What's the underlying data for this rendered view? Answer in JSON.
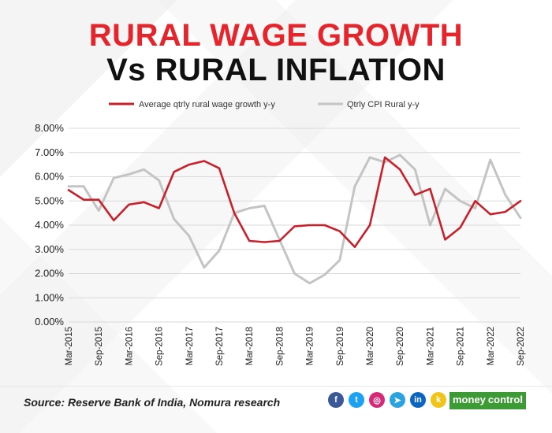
{
  "title_line1": "RURAL WAGE GROWTH",
  "title_line2": "Vs RURAL INFLATION",
  "source": "Source: Reserve Bank of India, Nomura research",
  "brand": {
    "part1": "money",
    "part2": "control"
  },
  "social_icons": [
    {
      "name": "facebook-icon",
      "glyph": "f",
      "color": "#3b5998"
    },
    {
      "name": "twitter-icon",
      "glyph": "t",
      "color": "#1da1f2"
    },
    {
      "name": "instagram-icon",
      "glyph": "◎",
      "color": "#d62976"
    },
    {
      "name": "telegram-icon",
      "glyph": "➤",
      "color": "#2aa3e0"
    },
    {
      "name": "linkedin-icon",
      "glyph": "in",
      "color": "#0a66c2"
    },
    {
      "name": "koo-icon",
      "glyph": "k",
      "color": "#f0c419"
    }
  ],
  "chart_data": {
    "type": "line",
    "xlabel": "",
    "ylabel": "",
    "ylim": [
      0,
      8
    ],
    "yticks": [
      "0.00%",
      "1.00%",
      "2.00%",
      "3.00%",
      "4.00%",
      "5.00%",
      "6.00%",
      "7.00%",
      "8.00%"
    ],
    "grid": true,
    "legend_position": "top",
    "x": [
      "Mar-2015",
      "Jun-2015",
      "Sep-2015",
      "Dec-2015",
      "Mar-2016",
      "Jun-2016",
      "Sep-2016",
      "Dec-2016",
      "Mar-2017",
      "Jun-2017",
      "Sep-2017",
      "Dec-2017",
      "Mar-2018",
      "Jun-2018",
      "Sep-2018",
      "Dec-2018",
      "Mar-2019",
      "Jun-2019",
      "Sep-2019",
      "Dec-2019",
      "Mar-2020",
      "Jun-2020",
      "Sep-2020",
      "Dec-2020",
      "Mar-2021",
      "Jun-2021",
      "Sep-2021",
      "Dec-2021",
      "Mar-2022",
      "Jun-2022",
      "Sep-2022"
    ],
    "x_tick_labels": [
      "Mar-2015",
      "Sep-2015",
      "Mar-2016",
      "Sep-2016",
      "Mar-2017",
      "Sep-2017",
      "Mar-2018",
      "Sep-2018",
      "Mar-2019",
      "Sep-2019",
      "Mar-2020",
      "Sep-2020",
      "Mar-2021",
      "Sep-2021",
      "Mar-2022",
      "Sep-2022"
    ],
    "series": [
      {
        "name": "Average qtrly rural wage growth y-y",
        "color": "#c8202a",
        "values": [
          5.45,
          5.05,
          5.05,
          4.2,
          4.85,
          4.95,
          4.7,
          6.2,
          6.5,
          6.65,
          6.35,
          4.5,
          3.35,
          3.3,
          3.35,
          3.95,
          4.0,
          4.0,
          3.75,
          3.1,
          4.0,
          6.8,
          6.3,
          5.25,
          5.5,
          3.4,
          3.9,
          5.0,
          4.45,
          4.55,
          5.0
        ]
      },
      {
        "name": "Qtrly CPI Rural y-y",
        "color": "#c4c4c4",
        "values": [
          5.6,
          5.6,
          4.6,
          5.95,
          6.1,
          6.3,
          5.85,
          4.25,
          3.55,
          2.25,
          2.95,
          4.5,
          4.7,
          4.8,
          3.4,
          2.0,
          1.6,
          1.95,
          2.55,
          5.6,
          6.8,
          6.6,
          6.9,
          6.3,
          4.0,
          5.5,
          5.0,
          4.7,
          6.7,
          5.25,
          4.3
        ]
      }
    ]
  }
}
